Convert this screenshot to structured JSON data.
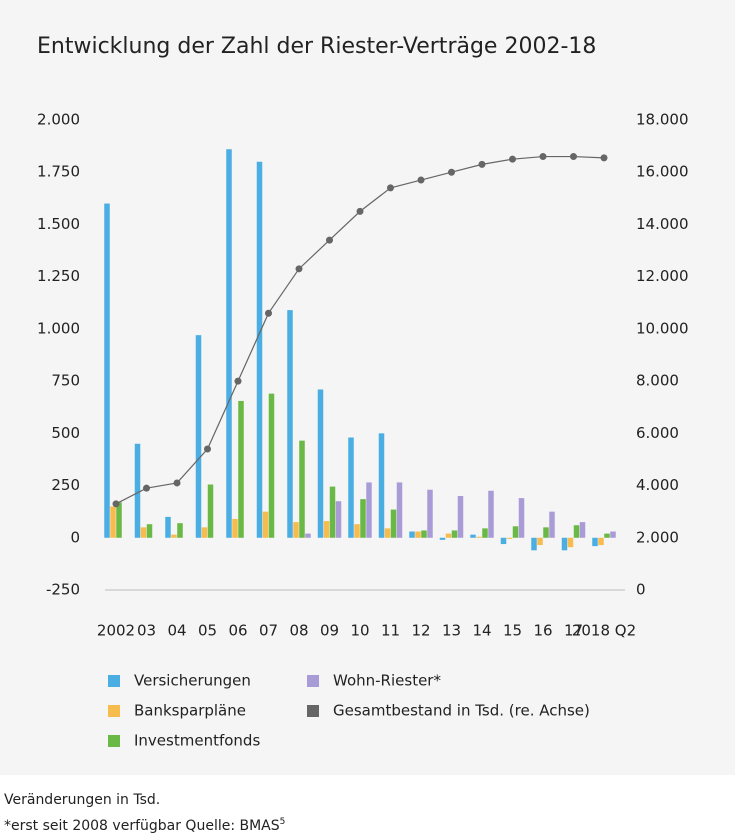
{
  "chart_data": {
    "type": "bar+line",
    "title": "Entwicklung der Zahl der Riester-Verträge 2002-18",
    "categories": [
      "2002",
      "03",
      "04",
      "05",
      "06",
      "07",
      "08",
      "09",
      "10",
      "11",
      "12",
      "13",
      "14",
      "15",
      "16",
      "17",
      "2018 Q2"
    ],
    "series": [
      {
        "name": "Versicherungen",
        "color": "#4aaee3",
        "type": "bar",
        "values": [
          1600,
          450,
          100,
          970,
          1860,
          1800,
          1090,
          710,
          480,
          500,
          30,
          -10,
          15,
          -30,
          -60,
          -60,
          -40
        ]
      },
      {
        "name": "Banksparpläne",
        "color": "#f7bc4e",
        "type": "bar",
        "values": [
          150,
          50,
          15,
          50,
          90,
          125,
          75,
          80,
          65,
          45,
          30,
          20,
          5,
          -5,
          -35,
          -45,
          -35
        ]
      },
      {
        "name": "Investmentfonds",
        "color": "#6ab845",
        "type": "bar",
        "values": [
          170,
          65,
          70,
          255,
          655,
          690,
          465,
          245,
          185,
          135,
          35,
          35,
          45,
          55,
          50,
          60,
          20
        ]
      },
      {
        "name": "Wohn-Riester*",
        "color": "#a99bd6",
        "type": "bar",
        "values": [
          null,
          null,
          null,
          null,
          null,
          null,
          20,
          175,
          265,
          265,
          230,
          200,
          225,
          190,
          125,
          75,
          30
        ]
      },
      {
        "name": "Gesamtbestand in Tsd. (re. Achse)",
        "color": "#666666",
        "type": "line",
        "axis": "y2",
        "values": [
          3300,
          3900,
          4100,
          5400,
          8000,
          10600,
          12300,
          13400,
          14500,
          15400,
          15700,
          16000,
          16300,
          16500,
          16600,
          16600,
          16550
        ]
      }
    ],
    "ylim": [
      -250,
      2000
    ],
    "yticks": [
      -250,
      0,
      250,
      500,
      750,
      {
        "value": 1000,
        "label": "1.000"
      },
      {
        "value": 1250,
        "label": "1.250"
      },
      {
        "value": 1500,
        "label": "1.500"
      },
      {
        "value": 1750,
        "label": "1.750"
      },
      {
        "value": 2000,
        "label": "2.000"
      }
    ],
    "y2lim": [
      0,
      18000
    ],
    "y2ticks": [
      0,
      {
        "value": 2000,
        "label": "2.000"
      },
      {
        "value": 4000,
        "label": "4.000"
      },
      {
        "value": 6000,
        "label": "6.000"
      },
      {
        "value": 8000,
        "label": "8.000"
      },
      {
        "value": 10000,
        "label": "10.000"
      },
      {
        "value": 12000,
        "label": "12.000"
      },
      {
        "value": 14000,
        "label": "14.000"
      },
      {
        "value": 16000,
        "label": "16.000"
      },
      {
        "value": 18000,
        "label": "18.000"
      }
    ],
    "grid": false,
    "note": "Veränderungen in Tsd.",
    "source": "*erst seit 2008 verfügbar  Quelle: BMAS",
    "source_ref": "5"
  }
}
